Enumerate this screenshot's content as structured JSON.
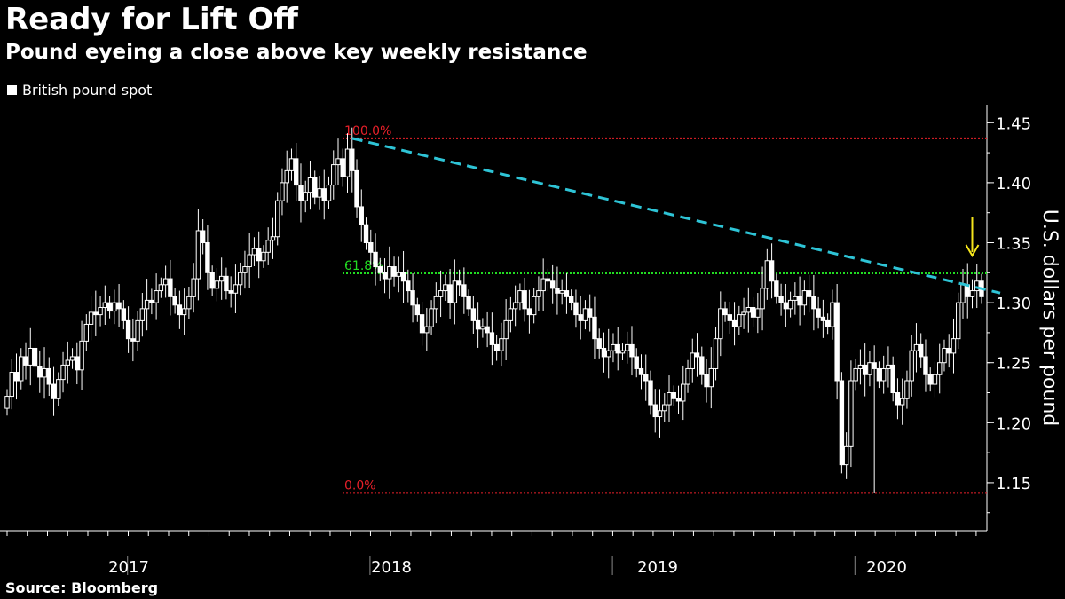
{
  "chart_data": {
    "type": "candlestick",
    "title": "Ready for Lift Off",
    "subtitle": "Pound eyeing a close above key weekly resistance",
    "legend": [
      {
        "label": "British pound spot",
        "color": "#ffffff"
      }
    ],
    "ylabel": "U.S. dollars per pound",
    "source": "Source: Bloomberg",
    "ylim": [
      1.11,
      1.465
    ],
    "yticks": [
      "1.45",
      "1.40",
      "1.35",
      "1.30",
      "1.25",
      "1.20",
      "1.15"
    ],
    "xlabels": [
      "2017",
      "2018",
      "2019",
      "2020"
    ],
    "fibonacci_levels": [
      {
        "label": "100.0%",
        "value": 1.437,
        "color": "#e8202a"
      },
      {
        "label": "61.8%",
        "value": 1.3245,
        "color": "#22dd22"
      },
      {
        "label": "0.0%",
        "value": 1.1415,
        "color": "#e8202a"
      }
    ],
    "trendline": {
      "color": "#2ec4d6",
      "start": {
        "week": 74,
        "value": 1.437
      },
      "end": {
        "week": 213,
        "value": 1.311
      }
    },
    "arrow": {
      "color": "#f5e51c",
      "week": 207
    },
    "weekly_close": [
      1.222,
      1.242,
      1.235,
      1.255,
      1.248,
      1.262,
      1.247,
      1.238,
      1.245,
      1.232,
      1.22,
      1.236,
      1.248,
      1.252,
      1.255,
      1.244,
      1.268,
      1.282,
      1.292,
      1.29,
      1.296,
      1.3,
      1.293,
      1.3,
      1.295,
      1.285,
      1.27,
      1.268,
      1.285,
      1.295,
      1.302,
      1.3,
      1.31,
      1.315,
      1.32,
      1.305,
      1.298,
      1.29,
      1.295,
      1.305,
      1.32,
      1.36,
      1.35,
      1.325,
      1.312,
      1.318,
      1.322,
      1.31,
      1.308,
      1.315,
      1.325,
      1.33,
      1.34,
      1.345,
      1.335,
      1.342,
      1.352,
      1.355,
      1.385,
      1.4,
      1.41,
      1.42,
      1.398,
      1.385,
      1.392,
      1.404,
      1.388,
      1.395,
      1.385,
      1.398,
      1.415,
      1.42,
      1.405,
      1.428,
      1.41,
      1.38,
      1.365,
      1.35,
      1.342,
      1.33,
      1.325,
      1.32,
      1.33,
      1.322,
      1.325,
      1.318,
      1.31,
      1.298,
      1.29,
      1.275,
      1.28,
      1.295,
      1.305,
      1.31,
      1.315,
      1.3,
      1.318,
      1.315,
      1.305,
      1.295,
      1.285,
      1.278,
      1.28,
      1.275,
      1.265,
      1.26,
      1.27,
      1.285,
      1.295,
      1.3,
      1.31,
      1.295,
      1.29,
      1.305,
      1.31,
      1.32,
      1.318,
      1.312,
      1.308,
      1.31,
      1.305,
      1.3,
      1.29,
      1.285,
      1.295,
      1.288,
      1.27,
      1.262,
      1.255,
      1.26,
      1.265,
      1.258,
      1.26,
      1.265,
      1.255,
      1.245,
      1.24,
      1.235,
      1.215,
      1.205,
      1.21,
      1.215,
      1.225,
      1.22,
      1.218,
      1.232,
      1.245,
      1.258,
      1.255,
      1.24,
      1.23,
      1.245,
      1.27,
      1.295,
      1.29,
      1.285,
      1.28,
      1.29,
      1.292,
      1.296,
      1.288,
      1.295,
      1.312,
      1.335,
      1.318,
      1.305,
      1.3,
      1.295,
      1.302,
      1.305,
      1.298,
      1.31,
      1.305,
      1.295,
      1.288,
      1.285,
      1.28,
      1.3,
      1.235,
      1.165,
      1.18,
      1.235,
      1.245,
      1.248,
      1.24,
      1.25,
      1.245,
      1.235,
      1.245,
      1.248,
      1.225,
      1.215,
      1.22,
      1.235,
      1.26,
      1.265,
      1.255,
      1.24,
      1.232,
      1.24,
      1.25,
      1.262,
      1.258,
      1.27,
      1.3,
      1.315,
      1.305,
      1.31,
      1.318,
      1.305
    ]
  }
}
